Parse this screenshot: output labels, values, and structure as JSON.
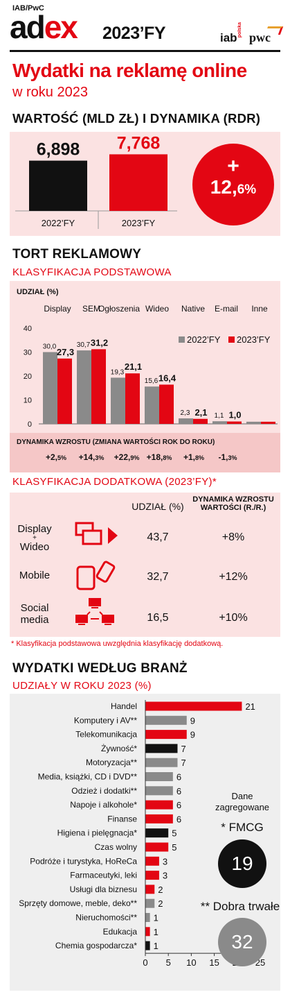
{
  "header": {
    "small": "IAB/PwC",
    "brand_a": "ad",
    "brand_b": "ex",
    "year": "2023’FY",
    "logo_iab": "iab",
    "logo_iab_sub": "polska",
    "logo_pwc": "pwc"
  },
  "headline": {
    "title": "Wydatki na reklamę online",
    "subtitle": "w roku 2023"
  },
  "section1": {
    "title": "WARTOŚĆ (MLD ZŁ) I DYNAMIKA (RDR)",
    "growth_sign": "+",
    "growth_value": "12,",
    "growth_decimal": "6%"
  },
  "section2": {
    "title": "TORT REKLAMOWY",
    "subtitle": "KLASYFIKACJA PODSTAWOWA",
    "share_label": "UDZIAŁ (%)",
    "dynamics_title": "DYNAMIKA WZROSTU (ZMIANA WARTOŚCI ROK DO ROKU)",
    "dynamics": [
      {
        "int": "+2,",
        "dec": "5%"
      },
      {
        "int": "+14,",
        "dec": "3%"
      },
      {
        "int": "+22,",
        "dec": "9%"
      },
      {
        "int": "+18,",
        "dec": "8%"
      },
      {
        "int": "+1,",
        "dec": "8%"
      },
      {
        "int": "-1,",
        "dec": "3%"
      }
    ]
  },
  "section3": {
    "title": "KLASYFIKACJA DODATKOWA (2023’FY)*",
    "col_share": "UDZIAŁ (%)",
    "col_dyn_1": "DYNAMIKA WZROSTU",
    "col_dyn_2": "WARTOŚCI (R./R.)",
    "rows": [
      {
        "label_1": "Display",
        "label_2": "+",
        "label_3": "Wideo",
        "share": "43,7",
        "dyn": "+8%"
      },
      {
        "label_1": "Mobile",
        "label_2": "",
        "label_3": "",
        "share": "32,7",
        "dyn": "+12%"
      },
      {
        "label_1": "Social",
        "label_2": "media",
        "label_3": "",
        "share": "16,5",
        "dyn": "+10%"
      }
    ],
    "note": "* Klasyfikacja podstawowa uwzględnia klasyfikację dodatkową."
  },
  "section4": {
    "title": "WYDATKI WEDŁUG BRANŻ",
    "subtitle": "UDZIAŁY W ROKU 2023 (%)",
    "agg_1": "Dane",
    "agg_2": "zagregowane",
    "fmcg_label": "* FMCG",
    "fmcg_value": "19",
    "durable_label": "** Dobra trwałe",
    "durable_value": "32"
  },
  "colors": {
    "red": "#e30613",
    "black": "#111111",
    "grey": "#8a8a8a",
    "pink": "#fbe2e2"
  },
  "chart_data": [
    {
      "type": "bar",
      "categories": [
        "2022’FY",
        "2023’FY"
      ],
      "values": [
        6.898,
        7.768
      ],
      "value_labels": [
        "6,898",
        "7,768"
      ],
      "colors": [
        "#111111",
        "#e30613"
      ]
    },
    {
      "type": "bar",
      "categories": [
        "Display",
        "SEM",
        "Ogłoszenia",
        "Wideo",
        "Native",
        "E-mail",
        "Inne"
      ],
      "series": [
        {
          "name": "2022’FY",
          "values": [
            30.0,
            30.7,
            19.3,
            15.6,
            2.3,
            1.1,
            0.9
          ],
          "labels": [
            "30,0",
            "30,7",
            "19,3",
            "15,6",
            "2,3",
            "1,1",
            ""
          ],
          "color": "#8a8a8a"
        },
        {
          "name": "2023’FY",
          "values": [
            27.3,
            31.2,
            21.1,
            16.4,
            2.1,
            1.0,
            0.9
          ],
          "labels": [
            "27,3",
            "31,2",
            "21,1",
            "16,4",
            "2,1",
            "1,0",
            ""
          ],
          "color": "#e30613"
        }
      ],
      "ylim": [
        0,
        40
      ],
      "yticks": [
        "0",
        "10",
        "20",
        "30",
        "40"
      ],
      "legend": "top-right"
    },
    {
      "type": "bar",
      "orientation": "horizontal",
      "categories": [
        "Handel",
        "Komputery i AV**",
        "Telekomunikacja",
        "Żywność*",
        "Motoryzacja**",
        "Media, książki, CD i DVD**",
        "Odzież i dodatki**",
        "Napoje i alkohole*",
        "Finanse",
        "Higiena i pielęgnacja*",
        "Czas wolny",
        "Podróże i turystyka, HoReCa",
        "Farmaceutyki, leki",
        "Usługi dla biznesu",
        "Sprzęty domowe, meble, deko**",
        "Nieruchomości**",
        "Edukacja",
        "Chemia gospodarcza*"
      ],
      "values": [
        21,
        9,
        9,
        7,
        7,
        6,
        6,
        6,
        6,
        5,
        5,
        3,
        3,
        2,
        2,
        1,
        1,
        1
      ],
      "colors": [
        "#e30613",
        "#8a8a8a",
        "#e30613",
        "#111111",
        "#8a8a8a",
        "#8a8a8a",
        "#8a8a8a",
        "#e30613",
        "#e30613",
        "#111111",
        "#e30613",
        "#e30613",
        "#e30613",
        "#e30613",
        "#8a8a8a",
        "#8a8a8a",
        "#e30613",
        "#111111"
      ],
      "xlim": [
        0,
        25
      ],
      "xticks": [
        "0",
        "5",
        "10",
        "15",
        "20",
        "25"
      ]
    }
  ]
}
